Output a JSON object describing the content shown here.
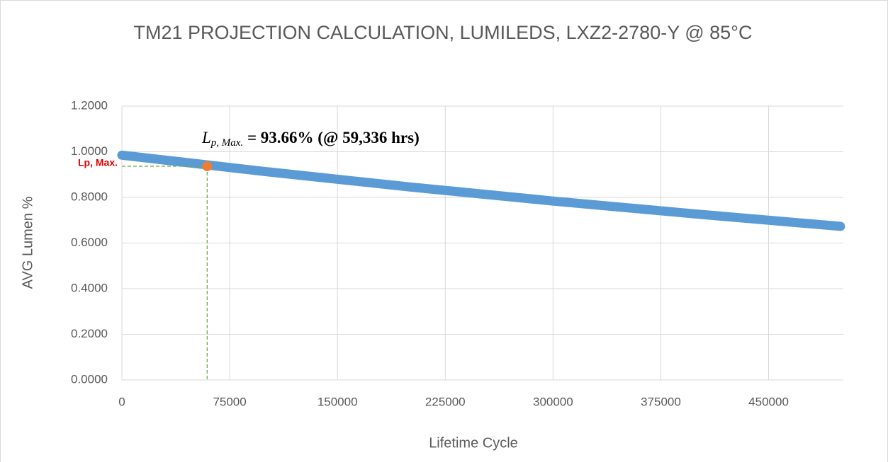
{
  "chart_data": {
    "type": "line",
    "title": "TM21 PROJECTION CALCULATION, LUMILEDS,  LXZ2-2780-Y @ 85°C",
    "xlabel": "Lifetime Cycle",
    "ylabel": "AVG Lumen %",
    "x": [
      0,
      100000,
      200000,
      300000,
      400000,
      500000
    ],
    "series": [
      {
        "name": "AVG Lumen %",
        "color": "#5b9bd5",
        "values": [
          0.985,
          0.913,
          0.846,
          0.784,
          0.727,
          0.673
        ]
      }
    ],
    "highlight": {
      "x": 59336,
      "y": 0.9366,
      "color": "#ed7d31",
      "label": "Lp, Max.",
      "guide_color": "#70ad47"
    },
    "annotation": {
      "main": "L",
      "sub": "p, Max.",
      "rest": " = 93.66% (@ 59,336 hrs)"
    },
    "xlim": [
      0,
      502000
    ],
    "xticks": [
      0,
      75000,
      150000,
      225000,
      300000,
      375000,
      450000
    ],
    "ylim": [
      0,
      1.2
    ],
    "yticks": [
      {
        "value": 0,
        "label": "0.0000"
      },
      {
        "value": 0.2,
        "label": "0.2000"
      },
      {
        "value": 0.4,
        "label": "0.4000"
      },
      {
        "value": 0.6,
        "label": "0.6000"
      },
      {
        "value": 0.8,
        "label": "0.8000"
      },
      {
        "value": 1.0,
        "label": "1.0000"
      },
      {
        "value": 1.2,
        "label": "1.2000"
      }
    ],
    "grid": true
  }
}
